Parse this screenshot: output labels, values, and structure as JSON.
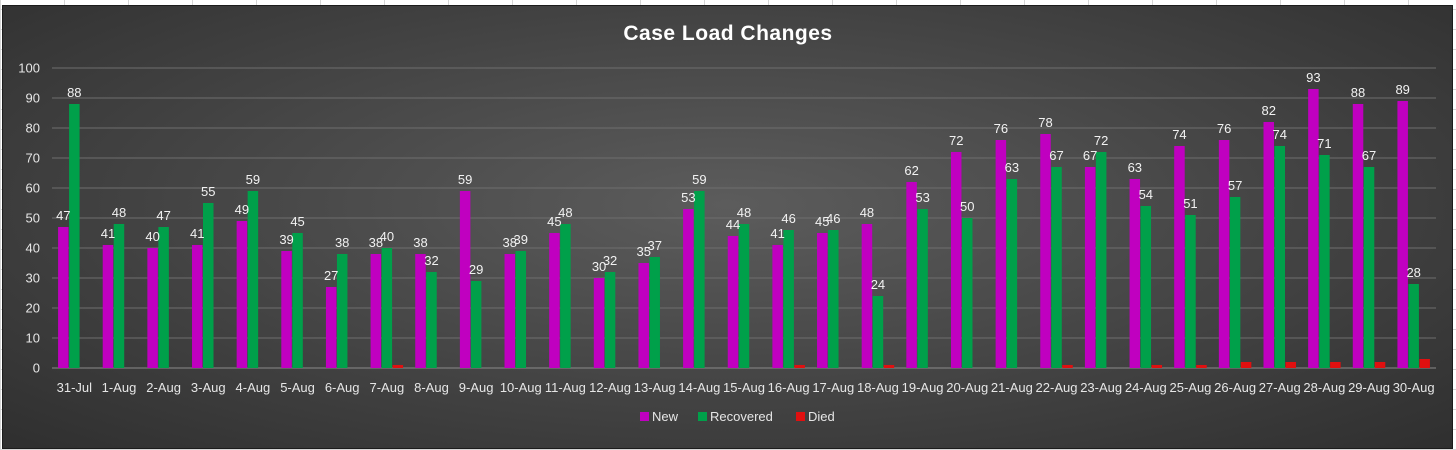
{
  "chart_data": {
    "type": "bar",
    "title": "Case Load Changes",
    "xlabel": "",
    "ylabel": "",
    "ylim": [
      0,
      100
    ],
    "yticks": [
      0,
      10,
      20,
      30,
      40,
      50,
      60,
      70,
      80,
      90,
      100
    ],
    "grid": true,
    "legend_position": "bottom",
    "categories": [
      "31-Jul",
      "1-Aug",
      "2-Aug",
      "3-Aug",
      "4-Aug",
      "5-Aug",
      "6-Aug",
      "7-Aug",
      "8-Aug",
      "9-Aug",
      "10-Aug",
      "11-Aug",
      "12-Aug",
      "13-Aug",
      "14-Aug",
      "15-Aug",
      "16-Aug",
      "17-Aug",
      "18-Aug",
      "19-Aug",
      "20-Aug",
      "21-Aug",
      "22-Aug",
      "23-Aug",
      "24-Aug",
      "25-Aug",
      "26-Aug",
      "27-Aug",
      "28-Aug",
      "29-Aug",
      "30-Aug"
    ],
    "series": [
      {
        "name": "New",
        "color": "#c000c0",
        "values": [
          47,
          41,
          40,
          41,
          49,
          39,
          27,
          38,
          38,
          59,
          38,
          45,
          30,
          35,
          53,
          44,
          41,
          45,
          48,
          62,
          72,
          76,
          78,
          67,
          63,
          74,
          76,
          82,
          93,
          88,
          89
        ],
        "labeled": true
      },
      {
        "name": "Recovered",
        "color": "#00a04a",
        "values": [
          88,
          48,
          47,
          55,
          59,
          45,
          38,
          40,
          32,
          29,
          39,
          48,
          32,
          37,
          59,
          48,
          46,
          46,
          24,
          53,
          50,
          63,
          67,
          72,
          54,
          51,
          57,
          74,
          71,
          67,
          28
        ],
        "labeled": true
      },
      {
        "name": "Died",
        "color": "#e01010",
        "values": [
          0,
          0,
          0,
          0,
          0,
          0,
          0,
          1,
          0,
          0,
          0,
          0,
          0,
          0,
          0,
          0,
          1,
          0,
          1,
          0,
          0,
          0,
          1,
          0,
          1,
          1,
          2,
          2,
          2,
          2,
          3
        ],
        "labeled": false
      }
    ]
  }
}
